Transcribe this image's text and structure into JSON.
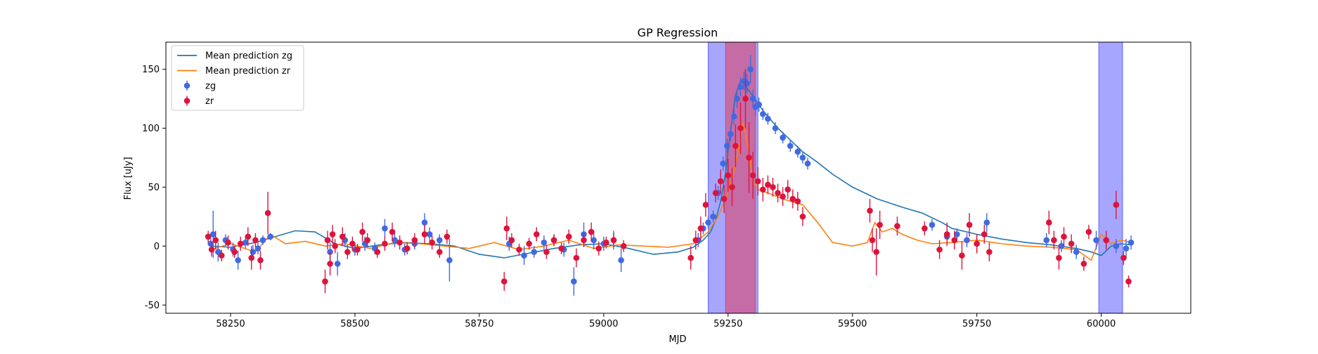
{
  "chart_data": {
    "type": "scatter",
    "title": "GP Regression",
    "xlabel": "MJD",
    "ylabel": "Flux [uJy]",
    "xlim": [
      58120,
      60180
    ],
    "ylim": [
      -57,
      173
    ],
    "xticks": [
      58250,
      58500,
      58750,
      59000,
      59250,
      59500,
      59750,
      60000
    ],
    "yticks": [
      -50,
      0,
      50,
      100,
      150
    ],
    "grid": false,
    "legend": {
      "placement": "top-left",
      "entries": [
        {
          "label": "Mean prediction zg",
          "kind": "line",
          "color": "#1f77b4"
        },
        {
          "label": "Mean prediction zr",
          "kind": "line",
          "color": "#ff7f0e"
        },
        {
          "label": "zg",
          "kind": "errorbar",
          "color": "#4169e1"
        },
        {
          "label": "zr",
          "kind": "errorbar",
          "color": "#dc143c"
        }
      ]
    },
    "shaded_regions": [
      {
        "x0": 59210,
        "x1": 59310,
        "color": "#0000ff",
        "alpha": 0.35
      },
      {
        "x0": 59245,
        "x1": 59305,
        "color": "#ff0000",
        "alpha": 0.35
      },
      {
        "x0": 59995,
        "x1": 60043,
        "color": "#0000ff",
        "alpha": 0.35
      }
    ],
    "series": [
      {
        "name": "Mean prediction zg",
        "kind": "line",
        "color": "#1f77b4",
        "x": [
          58210,
          58250,
          58300,
          58340,
          58380,
          58420,
          58460,
          58500,
          58550,
          58600,
          58650,
          58700,
          58750,
          58800,
          58850,
          58900,
          58950,
          59000,
          59050,
          59100,
          59150,
          59180,
          59200,
          59215,
          59225,
          59235,
          59245,
          59255,
          59265,
          59275,
          59285,
          59300,
          59320,
          59350,
          59380,
          59400,
          59430,
          59460,
          59500,
          59550,
          59600,
          59640,
          59680,
          59700,
          59750,
          59800,
          59850,
          59900,
          59950,
          59980,
          60000,
          60020,
          60040,
          60060
        ],
        "y": [
          0,
          -1,
          3,
          8,
          13,
          12,
          2,
          -2,
          1,
          3,
          2,
          0,
          -7,
          -10,
          -6,
          -2,
          1,
          2,
          -2,
          -7,
          -5,
          -1,
          5,
          12,
          22,
          38,
          62,
          98,
          128,
          140,
          136,
          127,
          115,
          100,
          88,
          80,
          71,
          61,
          50,
          40,
          33,
          28,
          20,
          15,
          10,
          6,
          3,
          1,
          -2,
          -5,
          -8,
          0,
          2,
          1
        ]
      },
      {
        "name": "Mean prediction zr",
        "kind": "line",
        "color": "#ff7f0e",
        "x": [
          58210,
          58250,
          58300,
          58330,
          58360,
          58400,
          58440,
          58480,
          58530,
          58580,
          58630,
          58680,
          58730,
          58780,
          58830,
          58880,
          58930,
          58980,
          59030,
          59080,
          59130,
          59180,
          59210,
          59230,
          59245,
          59260,
          59270,
          59280,
          59290,
          59300,
          59310,
          59330,
          59360,
          59400,
          59430,
          59460,
          59500,
          59530,
          59545,
          59560,
          59580,
          59600,
          59630,
          59660,
          59700,
          59750,
          59800,
          59850,
          59900,
          59950,
          59980,
          60000,
          60020,
          60040,
          60060
        ],
        "y": [
          -3,
          2,
          -5,
          10,
          2,
          4,
          0,
          2,
          -2,
          3,
          2,
          0,
          -2,
          3,
          -3,
          0,
          5,
          -2,
          1,
          0,
          -1,
          2,
          12,
          25,
          40,
          60,
          80,
          105,
          85,
          55,
          48,
          45,
          40,
          35,
          20,
          3,
          0,
          3,
          20,
          12,
          15,
          10,
          5,
          2,
          3,
          5,
          2,
          0,
          -1,
          -3,
          -12,
          10,
          2,
          5,
          3
        ]
      },
      {
        "name": "zg",
        "kind": "errorbar",
        "color": "#4169e1",
        "x": [
          58210,
          58215,
          58225,
          58240,
          58255,
          58265,
          58280,
          58295,
          58305,
          58315,
          58330,
          58450,
          58465,
          58480,
          58500,
          58520,
          58540,
          58560,
          58580,
          58600,
          58620,
          58640,
          58650,
          58670,
          58690,
          58810,
          58840,
          58860,
          58880,
          58900,
          58920,
          58940,
          58960,
          58980,
          59000,
          59020,
          59035,
          59190,
          59200,
          59210,
          59220,
          59230,
          59240,
          59248,
          59255,
          59262,
          59268,
          59275,
          59282,
          59288,
          59295,
          59300,
          59305,
          59312,
          59320,
          59330,
          59345,
          59360,
          59375,
          59390,
          59400,
          59410,
          59660,
          59690,
          59710,
          59730,
          59750,
          59770,
          59890,
          59920,
          59950,
          59990,
          60030,
          60050,
          60060
        ],
        "y": [
          2,
          10,
          -5,
          5,
          -3,
          -12,
          3,
          -5,
          -2,
          5,
          8,
          -5,
          -15,
          5,
          -3,
          2,
          -2,
          15,
          5,
          -3,
          2,
          20,
          10,
          5,
          -12,
          2,
          -8,
          -5,
          3,
          5,
          -3,
          -30,
          10,
          5,
          2,
          5,
          -12,
          5,
          15,
          20,
          25,
          45,
          70,
          85,
          95,
          110,
          125,
          135,
          140,
          138,
          150,
          125,
          118,
          120,
          112,
          108,
          100,
          92,
          85,
          80,
          75,
          70,
          18,
          8,
          10,
          5,
          2,
          20,
          5,
          0,
          -5,
          5,
          0,
          -2,
          3
        ],
        "yerr": [
          5,
          20,
          8,
          5,
          6,
          8,
          5,
          6,
          5,
          4,
          3,
          8,
          10,
          6,
          5,
          6,
          5,
          8,
          6,
          5,
          5,
          8,
          6,
          5,
          18,
          6,
          8,
          5,
          6,
          5,
          6,
          12,
          10,
          8,
          6,
          8,
          10,
          6,
          5,
          5,
          5,
          6,
          6,
          6,
          6,
          7,
          8,
          8,
          8,
          8,
          12,
          8,
          8,
          6,
          5,
          5,
          5,
          5,
          5,
          5,
          5,
          5,
          5,
          6,
          5,
          6,
          8,
          8,
          6,
          5,
          6,
          8,
          6,
          8,
          6
        ]
      },
      {
        "name": "zr",
        "kind": "errorbar",
        "color": "#dc143c",
        "x": [
          58205,
          58212,
          58220,
          58232,
          58245,
          58258,
          58270,
          58285,
          58292,
          58300,
          58310,
          58325,
          58440,
          58445,
          58450,
          58455,
          58460,
          58475,
          58485,
          58495,
          58505,
          58515,
          58525,
          58545,
          58560,
          58575,
          58590,
          58605,
          58620,
          58640,
          58655,
          58670,
          58685,
          58800,
          58805,
          58815,
          58830,
          58850,
          58865,
          58885,
          58900,
          58915,
          58930,
          58945,
          58960,
          58975,
          58990,
          59005,
          59020,
          59040,
          59175,
          59185,
          59195,
          59205,
          59225,
          59235,
          59242,
          59250,
          59258,
          59265,
          59275,
          59285,
          59292,
          59300,
          59310,
          59320,
          59330,
          59340,
          59350,
          59360,
          59370,
          59380,
          59390,
          59400,
          59535,
          59540,
          59548,
          59555,
          59590,
          59645,
          59675,
          59690,
          59705,
          59720,
          59735,
          59750,
          59765,
          59775,
          59895,
          59905,
          59915,
          59925,
          59940,
          59965,
          59975,
          60010,
          60030,
          60045,
          60055
        ],
        "y": [
          8,
          -3,
          5,
          -8,
          3,
          -5,
          2,
          8,
          -10,
          5,
          -12,
          28,
          -30,
          5,
          -15,
          10,
          0,
          8,
          -5,
          2,
          -3,
          12,
          5,
          -5,
          2,
          12,
          3,
          -2,
          5,
          10,
          3,
          -5,
          8,
          -30,
          15,
          5,
          -3,
          2,
          10,
          -5,
          5,
          -2,
          8,
          -10,
          5,
          12,
          -2,
          3,
          5,
          0,
          -10,
          5,
          15,
          35,
          45,
          55,
          40,
          60,
          50,
          85,
          100,
          125,
          75,
          60,
          55,
          48,
          52,
          50,
          45,
          42,
          48,
          40,
          38,
          25,
          30,
          5,
          -5,
          18,
          17,
          15,
          -3,
          10,
          5,
          -8,
          18,
          2,
          10,
          -5,
          20,
          5,
          -10,
          8,
          2,
          -15,
          12,
          5,
          35,
          -10,
          -30
        ],
        "yerr": [
          5,
          6,
          8,
          5,
          6,
          5,
          6,
          8,
          10,
          6,
          8,
          18,
          10,
          8,
          10,
          8,
          6,
          8,
          6,
          6,
          5,
          8,
          6,
          5,
          6,
          8,
          6,
          5,
          6,
          8,
          6,
          5,
          6,
          8,
          10,
          6,
          5,
          5,
          6,
          6,
          5,
          5,
          6,
          8,
          6,
          8,
          6,
          5,
          6,
          5,
          10,
          8,
          10,
          10,
          8,
          10,
          12,
          14,
          16,
          18,
          22,
          25,
          30,
          20,
          12,
          10,
          8,
          8,
          8,
          8,
          8,
          8,
          8,
          8,
          10,
          10,
          20,
          12,
          8,
          6,
          8,
          10,
          8,
          12,
          10,
          8,
          8,
          8,
          10,
          8,
          10,
          8,
          8,
          6,
          6,
          8,
          12,
          6,
          5
        ]
      }
    ]
  }
}
